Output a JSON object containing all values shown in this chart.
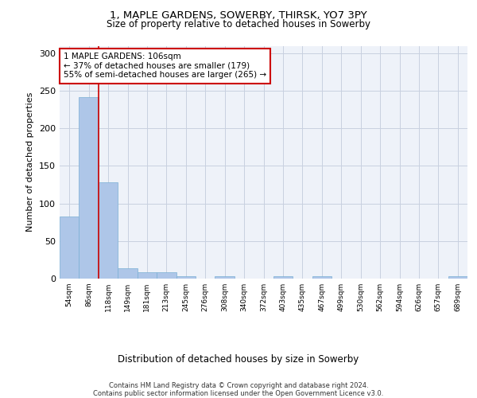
{
  "title_line1": "1, MAPLE GARDENS, SOWERBY, THIRSK, YO7 3PY",
  "title_line2": "Size of property relative to detached houses in Sowerby",
  "xlabel": "Distribution of detached houses by size in Sowerby",
  "ylabel": "Number of detached properties",
  "bar_color": "#aec6e8",
  "bar_edge_color": "#7aafd4",
  "bin_labels": [
    "54sqm",
    "86sqm",
    "118sqm",
    "149sqm",
    "181sqm",
    "213sqm",
    "245sqm",
    "276sqm",
    "308sqm",
    "340sqm",
    "372sqm",
    "403sqm",
    "435sqm",
    "467sqm",
    "499sqm",
    "530sqm",
    "562sqm",
    "594sqm",
    "626sqm",
    "657sqm",
    "689sqm"
  ],
  "bar_heights": [
    83,
    242,
    128,
    14,
    8,
    9,
    3,
    0,
    3,
    0,
    0,
    3,
    0,
    3,
    0,
    0,
    0,
    0,
    0,
    0,
    3
  ],
  "ylim": [
    0,
    310
  ],
  "yticks": [
    0,
    50,
    100,
    150,
    200,
    250,
    300
  ],
  "vline_x_index": 1.5,
  "vline_color": "#cc0000",
  "annotation_text": "1 MAPLE GARDENS: 106sqm\n← 37% of detached houses are smaller (179)\n55% of semi-detached houses are larger (265) →",
  "annotation_box_color": "white",
  "annotation_box_edge_color": "#cc0000",
  "footer_text": "Contains HM Land Registry data © Crown copyright and database right 2024.\nContains public sector information licensed under the Open Government Licence v3.0.",
  "background_color": "#eef2f9",
  "grid_color": "#c8d0e0"
}
